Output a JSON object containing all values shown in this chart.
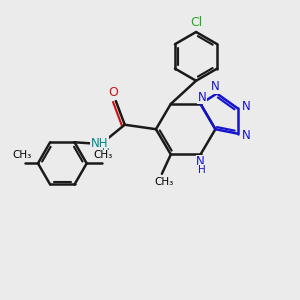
{
  "background_color": "#ebebeb",
  "bond_color": "#1a1a1a",
  "bond_width": 1.8,
  "N_color": "#1414cc",
  "O_color": "#cc1414",
  "Cl_color": "#22aa22",
  "NH_color": "#008888",
  "figsize": [
    3.0,
    3.0
  ],
  "dpi": 100,
  "xlim": [
    0,
    10
  ],
  "ylim": [
    0,
    10
  ]
}
